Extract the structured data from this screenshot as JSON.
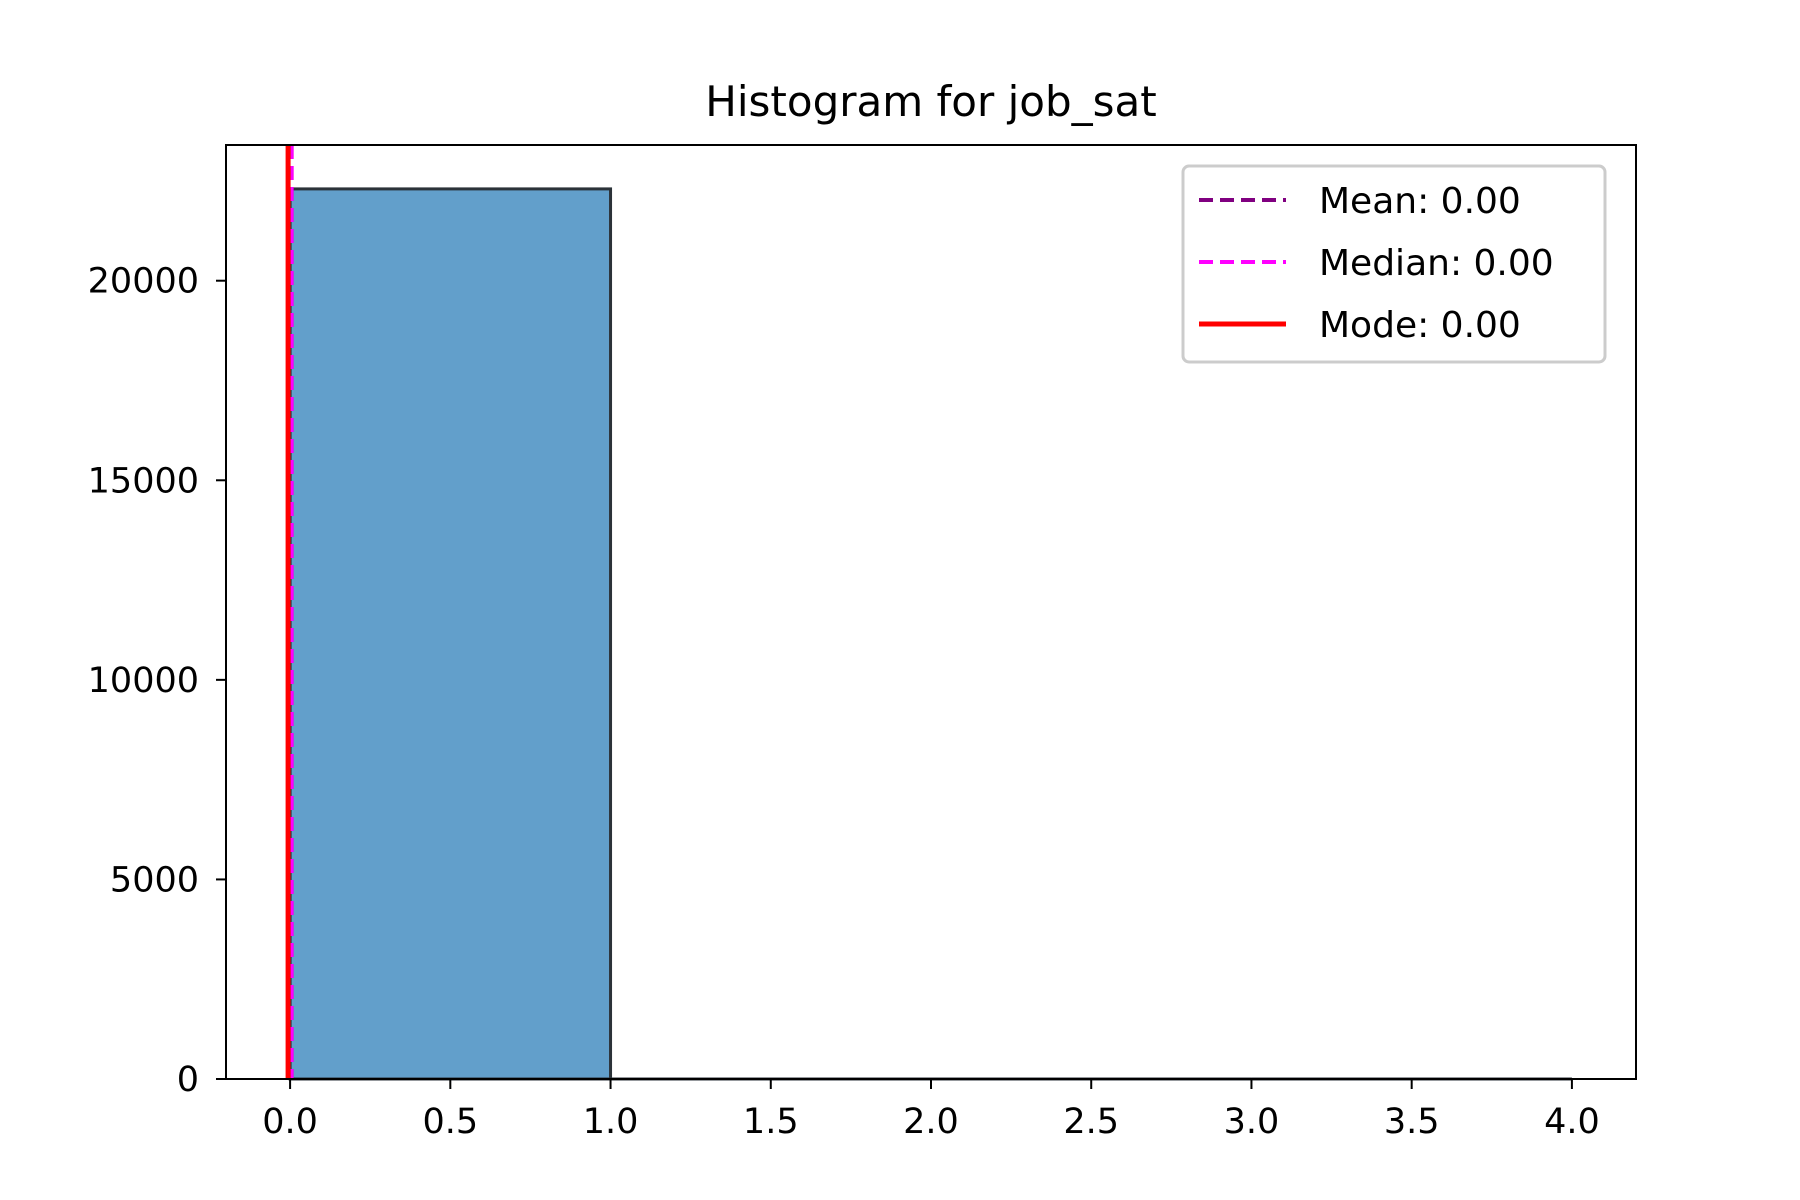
{
  "chart_data": {
    "type": "bar",
    "title": "Histogram for job_sat",
    "xlabel": "",
    "ylabel": "",
    "xlim": [
      -0.2,
      4.2
    ],
    "ylim": [
      0,
      23400
    ],
    "x_ticks": [
      0.0,
      0.5,
      1.0,
      1.5,
      2.0,
      2.5,
      3.0,
      3.5,
      4.0
    ],
    "x_tick_labels": [
      "0.0",
      "0.5",
      "1.0",
      "1.5",
      "2.0",
      "2.5",
      "3.0",
      "3.5",
      "4.0"
    ],
    "y_ticks": [
      0,
      5000,
      10000,
      15000,
      20000
    ],
    "y_tick_labels": [
      "0",
      "5000",
      "10000",
      "15000",
      "20000"
    ],
    "bins": [
      {
        "x0": 0.0,
        "x1": 1.0,
        "count": 22300
      },
      {
        "x0": 1.0,
        "x1": 2.0,
        "count": 0
      },
      {
        "x0": 2.0,
        "x1": 3.0,
        "count": 0
      },
      {
        "x0": 3.0,
        "x1": 4.0,
        "count": 0
      }
    ],
    "bar_color": "#629fcb",
    "bar_edge_color": "#2b3238",
    "grid": false,
    "legend_position": "top-right",
    "reference_lines": [
      {
        "label": "Mean: 0.00",
        "x": 0.0,
        "color": "#800080",
        "style": "dashed"
      },
      {
        "label": "Median: 0.00",
        "x": 0.0,
        "color": "#ff00ff",
        "style": "dashed"
      },
      {
        "label": "Mode: 0.00",
        "x": 0.0,
        "color": "#ff0000",
        "style": "solid"
      }
    ]
  }
}
